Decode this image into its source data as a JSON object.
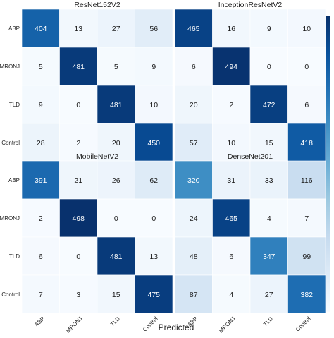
{
  "chart_data": {
    "type": "heatmap",
    "xlabel": "Predicted",
    "classes": [
      "ABP",
      "MRONJ",
      "TLD",
      "Control"
    ],
    "row_labels_visible": [
      "ABP",
      "MRONJ",
      "TLD",
      "Control"
    ],
    "col_labels": [
      "ABP",
      "MRONJ",
      "TLD",
      "Control"
    ],
    "vmax": 500,
    "color_low": "#f7fbff",
    "color_high": "#08306b",
    "panels": [
      {
        "title": "ResNet152V2",
        "matrix": [
          [
            404,
            13,
            27,
            56
          ],
          [
            5,
            481,
            5,
            9
          ],
          [
            9,
            0,
            481,
            10
          ],
          [
            28,
            2,
            20,
            450
          ]
        ]
      },
      {
        "title": "InceptionResNetV2",
        "matrix": [
          [
            465,
            16,
            9,
            10
          ],
          [
            6,
            494,
            0,
            0
          ],
          [
            20,
            2,
            472,
            6
          ],
          [
            57,
            10,
            15,
            418
          ]
        ]
      },
      {
        "title": "MobileNetV2",
        "matrix": [
          [
            391,
            21,
            26,
            62
          ],
          [
            2,
            498,
            0,
            0
          ],
          [
            6,
            0,
            481,
            13
          ],
          [
            7,
            3,
            15,
            475
          ]
        ]
      },
      {
        "title": "DenseNet201",
        "matrix": [
          [
            320,
            31,
            33,
            116
          ],
          [
            24,
            465,
            4,
            7
          ],
          [
            48,
            6,
            347,
            99
          ],
          [
            87,
            4,
            27,
            382
          ]
        ]
      }
    ]
  }
}
